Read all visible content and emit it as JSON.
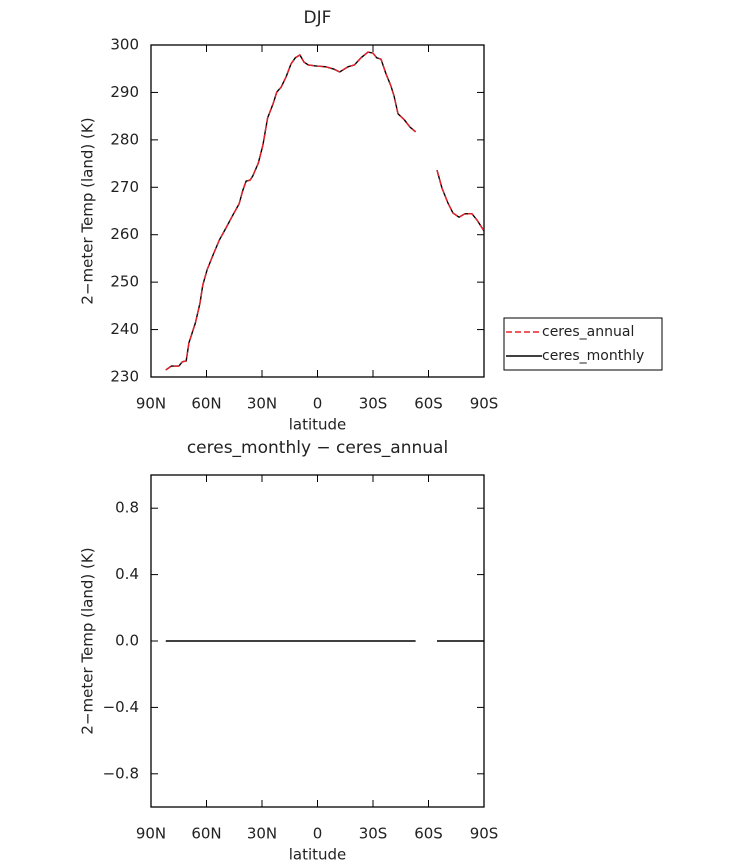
{
  "chart_data": [
    {
      "type": "line",
      "title": "DJF",
      "xlabel": "latitude",
      "ylabel": "2−meter Temp (land) (K)",
      "xlim": [
        90,
        -90
      ],
      "xticks": [
        {
          "value": 90,
          "label": "90N"
        },
        {
          "value": 60,
          "label": "60N"
        },
        {
          "value": 30,
          "label": "30N"
        },
        0,
        {
          "value": -30,
          "label": "30S"
        },
        {
          "value": -60,
          "label": "60S"
        },
        {
          "value": -90,
          "label": "90S"
        }
      ],
      "ylim": [
        230,
        300
      ],
      "yticks": [
        230,
        240,
        250,
        260,
        270,
        280,
        290,
        300
      ],
      "legend": "right",
      "x": [
        82,
        79,
        75,
        73,
        71,
        69.5,
        66,
        63.5,
        62,
        59.7,
        56.5,
        53,
        49.5,
        45.7,
        42.4,
        40.3,
        38.6,
        36.5,
        35,
        32,
        29.5,
        27,
        24,
        22,
        19.7,
        17,
        14.3,
        12,
        9.5,
        7.3,
        5,
        1,
        -4.6,
        -9,
        -12,
        -16.5,
        -20,
        -23.5,
        -27.3,
        -30,
        -32,
        -34.3,
        -37,
        -39.7,
        -41.4,
        -43.5,
        -47,
        -50,
        -53,
        -58,
        -64.6,
        -67.3,
        -70.5,
        -73.2,
        -76.5,
        -79.7,
        -83.5,
        -86.2,
        -90
      ],
      "series": [
        {
          "name": "ceres_annual",
          "color": "#e8202a",
          "linestyle": "dashed",
          "values": [
            231.5,
            232.3,
            232.3,
            233.2,
            233.4,
            237.2,
            241.4,
            245.6,
            249.4,
            252.6,
            255.7,
            258.9,
            261.4,
            264.2,
            266.5,
            269.4,
            271.3,
            271.5,
            272.4,
            275.1,
            278.9,
            284.6,
            287.6,
            290.1,
            291.1,
            293.3,
            296.0,
            297.3,
            297.9,
            296.4,
            295.8,
            295.6,
            295.4,
            294.9,
            294.3,
            295.4,
            295.8,
            297.3,
            298.5,
            298.3,
            297.3,
            297.0,
            293.9,
            291.4,
            289.2,
            285.5,
            284.2,
            282.7,
            281.7,
            null,
            273.6,
            269.8,
            266.7,
            264.6,
            263.7,
            264.4,
            264.4,
            263.1,
            260.8
          ]
        },
        {
          "name": "ceres_monthly",
          "color": "#000000",
          "linestyle": "solid",
          "values": [
            231.5,
            232.3,
            232.3,
            233.2,
            233.4,
            237.2,
            241.4,
            245.6,
            249.4,
            252.6,
            255.7,
            258.9,
            261.4,
            264.2,
            266.5,
            269.4,
            271.3,
            271.5,
            272.4,
            275.1,
            278.9,
            284.6,
            287.6,
            290.1,
            291.1,
            293.3,
            296.0,
            297.3,
            297.9,
            296.4,
            295.8,
            295.6,
            295.4,
            294.9,
            294.3,
            295.4,
            295.8,
            297.3,
            298.5,
            298.3,
            297.3,
            297.0,
            293.9,
            291.4,
            289.2,
            285.5,
            284.2,
            282.7,
            281.7,
            null,
            273.6,
            269.8,
            266.7,
            264.6,
            263.7,
            264.4,
            264.4,
            263.1,
            260.8
          ]
        }
      ]
    },
    {
      "type": "line",
      "title": "ceres_monthly − ceres_annual",
      "xlabel": "latitude",
      "ylabel": "2−meter Temp (land) (K)",
      "xlim": [
        90,
        -90
      ],
      "xticks": [
        {
          "value": 90,
          "label": "90N"
        },
        {
          "value": 60,
          "label": "60N"
        },
        {
          "value": 30,
          "label": "30N"
        },
        0,
        {
          "value": -30,
          "label": "30S"
        },
        {
          "value": -60,
          "label": "60S"
        },
        {
          "value": -90,
          "label": "90S"
        }
      ],
      "ylim": [
        -1,
        1
      ],
      "yticks": [
        {
          "value": -0.8,
          "label": "−0.8"
        },
        {
          "value": -0.4,
          "label": "−0.4"
        },
        {
          "value": 0,
          "label": "0.0"
        },
        0.4,
        0.8
      ],
      "x": [
        82,
        -53,
        -58,
        -64.6,
        -90
      ],
      "series": [
        {
          "color": "#000000",
          "linestyle": "solid",
          "values": [
            0,
            0,
            null,
            0,
            0
          ]
        }
      ]
    }
  ]
}
